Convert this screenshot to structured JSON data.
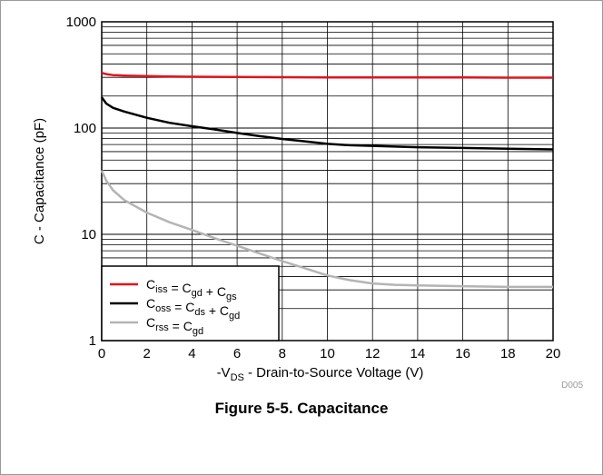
{
  "figure": {
    "caption": "Figure 5-5. Capacitance",
    "code": "D005"
  },
  "chart_data": {
    "type": "line",
    "title": "",
    "xlabel": {
      "prefix": "-V",
      "sub": "DS",
      "suffix": " - Drain-to-Source Voltage (V)"
    },
    "ylabel": "C - Capacitance (pF)",
    "xlim": [
      0,
      20
    ],
    "ylim": [
      1,
      1000
    ],
    "yscale": "log",
    "grid": true,
    "legend_position": "bottom-left",
    "xticks": [
      "0",
      "2",
      "4",
      "6",
      "8",
      "10",
      "12",
      "14",
      "16",
      "18",
      "20"
    ],
    "yticks": [
      "1",
      "10",
      "100",
      "1000"
    ],
    "series": [
      {
        "name": "Ciss = Cgd + Cgs",
        "color": "#e0141c",
        "legend": [
          {
            "t": "C",
            "s": ""
          },
          {
            "t": "iss",
            "s": "sub"
          },
          {
            "t": " = C",
            "s": ""
          },
          {
            "t": "gd",
            "s": "sub"
          },
          {
            "t": " + C",
            "s": ""
          },
          {
            "t": "gs",
            "s": "sub"
          }
        ],
        "x": [
          0,
          0.2,
          0.5,
          1,
          2,
          3,
          4,
          6,
          8,
          10,
          12,
          14,
          16,
          18,
          20
        ],
        "y": [
          330,
          322,
          315,
          312,
          308,
          306,
          304,
          302,
          301,
          300,
          300,
          299,
          299,
          298,
          298
        ]
      },
      {
        "name": "Coss = Cds + Cgd",
        "color": "#000000",
        "legend": [
          {
            "t": "C",
            "s": ""
          },
          {
            "t": "oss",
            "s": "sub"
          },
          {
            "t": " = C",
            "s": ""
          },
          {
            "t": "ds",
            "s": "sub"
          },
          {
            "t": " + C",
            "s": ""
          },
          {
            "t": "gd",
            "s": "sub"
          }
        ],
        "x": [
          0,
          0.2,
          0.5,
          1,
          2,
          3,
          4,
          5,
          6,
          7,
          8,
          9,
          10,
          11,
          12,
          14,
          16,
          18,
          20
        ],
        "y": [
          195,
          170,
          155,
          143,
          125,
          112,
          104,
          97,
          90,
          84,
          79,
          75,
          71,
          69,
          68,
          66,
          65,
          64,
          63
        ]
      },
      {
        "name": "Crss = Cgd",
        "color": "#b4b4b4",
        "legend": [
          {
            "t": "C",
            "s": ""
          },
          {
            "t": "rss",
            "s": "sub"
          },
          {
            "t": " = C",
            "s": ""
          },
          {
            "t": "gd",
            "s": "sub"
          }
        ],
        "x": [
          0,
          0.2,
          0.5,
          1,
          2,
          3,
          4,
          5,
          6,
          7,
          8,
          9,
          10,
          11,
          12,
          13,
          14,
          16,
          18,
          20
        ],
        "y": [
          40,
          32,
          26,
          21,
          16,
          13,
          11,
          9.2,
          7.8,
          6.6,
          5.6,
          4.8,
          4.1,
          3.7,
          3.45,
          3.35,
          3.3,
          3.25,
          3.2,
          3.2
        ]
      }
    ]
  }
}
